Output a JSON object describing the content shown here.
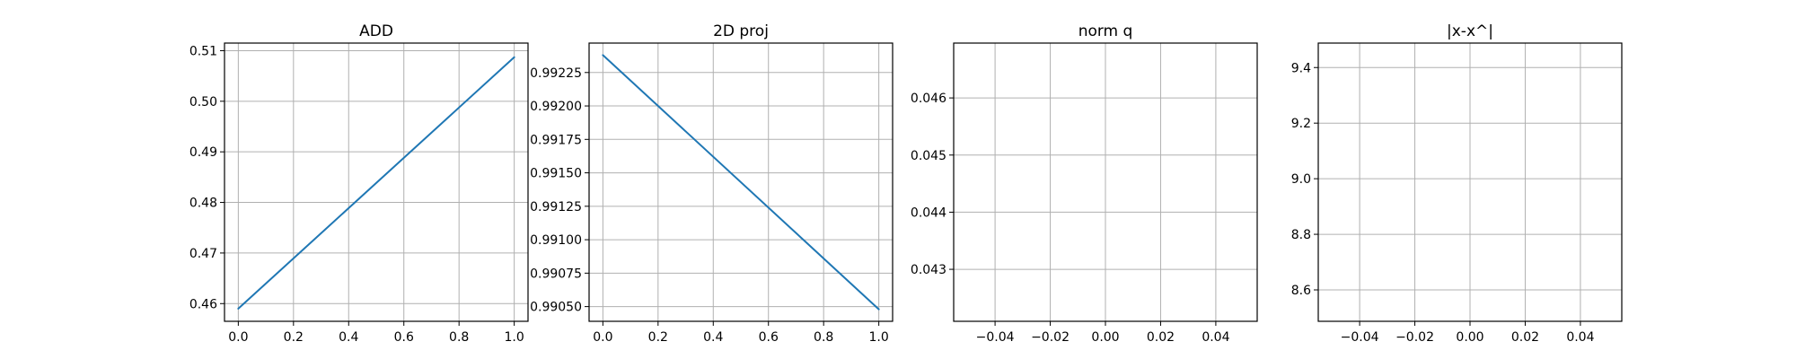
{
  "chart_data": [
    {
      "type": "line",
      "title": "ADD",
      "xlabel": "",
      "ylabel": "",
      "xlim": [
        -0.05,
        1.05
      ],
      "ylim": [
        0.4565,
        0.5115
      ],
      "xticks": [
        0.0,
        0.2,
        0.4,
        0.6,
        0.8,
        1.0
      ],
      "xtick_labels": [
        "0.0",
        "0.2",
        "0.4",
        "0.6",
        "0.8",
        "1.0"
      ],
      "yticks": [
        0.46,
        0.47,
        0.48,
        0.49,
        0.5,
        0.51
      ],
      "ytick_labels": [
        "0.46",
        "0.47",
        "0.48",
        "0.49",
        "0.50",
        "0.51"
      ],
      "grid": true,
      "series": [
        {
          "x": [
            0.0,
            1.0
          ],
          "y": [
            0.459,
            0.5087
          ],
          "color": "#1f77b4"
        }
      ]
    },
    {
      "type": "line",
      "title": "2D proj",
      "xlabel": "",
      "ylabel": "",
      "xlim": [
        -0.05,
        1.05
      ],
      "ylim": [
        0.99039,
        0.99247
      ],
      "xticks": [
        0.0,
        0.2,
        0.4,
        0.6,
        0.8,
        1.0
      ],
      "xtick_labels": [
        "0.0",
        "0.2",
        "0.4",
        "0.6",
        "0.8",
        "1.0"
      ],
      "yticks": [
        0.9905,
        0.99075,
        0.991,
        0.99125,
        0.9915,
        0.99175,
        0.992,
        0.99225
      ],
      "ytick_labels": [
        "0.99050",
        "0.99075",
        "0.99100",
        "0.99125",
        "0.99150",
        "0.99175",
        "0.99200",
        "0.99225"
      ],
      "grid": true,
      "series": [
        {
          "x": [
            0.0,
            1.0
          ],
          "y": [
            0.99238,
            0.99048
          ],
          "color": "#1f77b4"
        }
      ]
    },
    {
      "type": "line",
      "title": "norm q",
      "xlabel": "",
      "ylabel": "",
      "xlim": [
        -0.055,
        0.055
      ],
      "ylim": [
        0.04209,
        0.04696
      ],
      "xticks": [
        -0.04,
        -0.02,
        0.0,
        0.02,
        0.04
      ],
      "xtick_labels": [
        "−0.04",
        "−0.02",
        "0.00",
        "0.02",
        "0.04"
      ],
      "yticks": [
        0.043,
        0.044,
        0.045,
        0.046
      ],
      "ytick_labels": [
        "0.043",
        "0.044",
        "0.045",
        "0.046"
      ],
      "grid": true,
      "series": []
    },
    {
      "type": "line",
      "title": "|x-x^|",
      "xlabel": "",
      "ylabel": "",
      "xlim": [
        -0.055,
        0.055
      ],
      "ylim": [
        8.487,
        9.488
      ],
      "xticks": [
        -0.04,
        -0.02,
        0.0,
        0.02,
        0.04
      ],
      "xtick_labels": [
        "−0.04",
        "−0.02",
        "0.00",
        "0.02",
        "0.04"
      ],
      "yticks": [
        8.6,
        8.8,
        9.0,
        9.2,
        9.4
      ],
      "ytick_labels": [
        "8.6",
        "8.8",
        "9.0",
        "9.2",
        "9.4"
      ],
      "grid": true,
      "series": []
    }
  ]
}
